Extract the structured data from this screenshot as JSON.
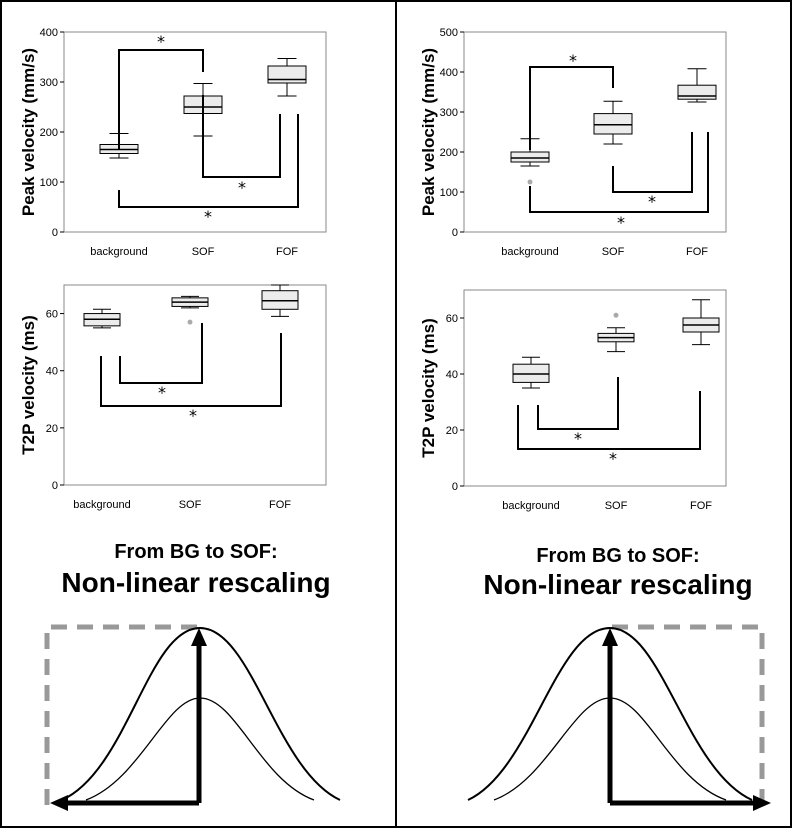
{
  "chart_data": [
    {
      "type": "box",
      "ylabel": "Peak velocity (mm/s)",
      "ylim": [
        0,
        400
      ],
      "yticks": [
        0,
        100,
        200,
        300,
        400
      ],
      "categories": [
        "background",
        "SOF",
        "FOF"
      ],
      "boxes": [
        {
          "min": 148,
          "q1": 157,
          "median": 165,
          "q3": 175,
          "max": 197,
          "outliers": []
        },
        {
          "min": 192,
          "q1": 237,
          "median": 250,
          "q3": 272,
          "max": 297,
          "outliers": []
        },
        {
          "min": 272,
          "q1": 298,
          "median": 305,
          "q3": 332,
          "max": 347,
          "outliers": []
        }
      ],
      "significance": [
        {
          "from": 0,
          "to": 1,
          "marker": "*"
        },
        {
          "from": 1,
          "to": 2,
          "marker": "*"
        },
        {
          "from": 0,
          "to": 2,
          "marker": "*"
        }
      ]
    },
    {
      "type": "box",
      "ylabel": "Peak velocity (mm/s)",
      "ylim": [
        0,
        500
      ],
      "yticks": [
        0,
        100,
        200,
        300,
        400,
        500
      ],
      "categories": [
        "background",
        "SOF",
        "FOF"
      ],
      "boxes": [
        {
          "min": 165,
          "q1": 175,
          "median": 185,
          "q3": 200,
          "max": 233,
          "outliers": [
            125
          ]
        },
        {
          "min": 220,
          "q1": 245,
          "median": 268,
          "q3": 296,
          "max": 327,
          "outliers": []
        },
        {
          "min": 325,
          "q1": 332,
          "median": 340,
          "q3": 367,
          "max": 408,
          "outliers": []
        }
      ],
      "significance": [
        {
          "from": 0,
          "to": 1,
          "marker": "*"
        },
        {
          "from": 1,
          "to": 2,
          "marker": "*"
        },
        {
          "from": 0,
          "to": 2,
          "marker": "*"
        }
      ]
    },
    {
      "type": "box",
      "ylabel": "T2P velocity (ms)",
      "ylim": [
        0,
        70
      ],
      "yticks": [
        0,
        20,
        40,
        60
      ],
      "categories": [
        "background",
        "SOF",
        "FOF"
      ],
      "boxes": [
        {
          "min": 55,
          "q1": 55.7,
          "median": 58,
          "q3": 60,
          "max": 61.5,
          "outliers": []
        },
        {
          "min": 62,
          "q1": 62.5,
          "median": 64,
          "q3": 65.5,
          "max": 66,
          "outliers": [
            57
          ]
        },
        {
          "min": 59,
          "q1": 61.5,
          "median": 64.5,
          "q3": 68,
          "max": 70,
          "outliers": []
        }
      ],
      "significance": [
        {
          "from": 0,
          "to": 1,
          "marker": "*"
        },
        {
          "from": 0,
          "to": 2,
          "marker": "*"
        }
      ]
    },
    {
      "type": "box",
      "ylabel": "T2P velocity (ms)",
      "ylim": [
        0,
        70
      ],
      "yticks": [
        0,
        20,
        40,
        60
      ],
      "categories": [
        "background",
        "SOF",
        "FOF"
      ],
      "boxes": [
        {
          "min": 35,
          "q1": 37,
          "median": 40,
          "q3": 43.5,
          "max": 46,
          "outliers": []
        },
        {
          "min": 48,
          "q1": 51.5,
          "median": 53,
          "q3": 54.5,
          "max": 56.5,
          "outliers": [
            61
          ]
        },
        {
          "min": 50.5,
          "q1": 55,
          "median": 57.5,
          "q3": 60,
          "max": 66.5,
          "outliers": []
        }
      ],
      "significance": [
        {
          "from": 0,
          "to": 1,
          "marker": "*"
        },
        {
          "from": 0,
          "to": 2,
          "marker": "*"
        }
      ]
    }
  ],
  "captions": {
    "left": {
      "line1": "From BG to SOF:",
      "line2": "Non-linear rescaling"
    },
    "right": {
      "line1": "From BG to SOF:",
      "line2": "Non-linear rescaling"
    }
  },
  "colors": {
    "box_fill": "#ececec",
    "plot_border": "#888888",
    "dashed_box": "#999999",
    "outlier": "#aaaaaa",
    "ink": "#000000"
  }
}
